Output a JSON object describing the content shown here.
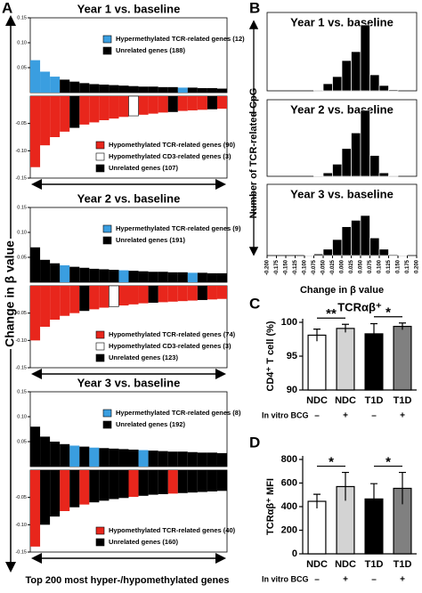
{
  "panels": {
    "A": {
      "label": "A",
      "y_label": "Change in β value",
      "x_label": "Top 200 most hyper-/hypomethylated genes"
    },
    "B": {
      "label": "B",
      "y_label": "Number of TCR-related CpG",
      "x_label": "Change in β value"
    },
    "C": {
      "label": "C"
    },
    "D": {
      "label": "D"
    }
  },
  "chart_data": [
    {
      "type": "bar",
      "title": "Year 1 vs. baseline",
      "ylim": [
        0,
        0.15
      ],
      "yticks": [
        0.05,
        {
          "value": 0.1,
          "label": "0.10"
        },
        {
          "value": 0.15,
          "label": "0.15"
        }
      ],
      "series": [
        {
          "name": "Hypermethylated TCR-related genes (12)",
          "color": "#3a9ee0",
          "values": [
            0.065,
            0.042,
            0.032,
            null,
            null,
            null,
            null,
            null,
            null,
            null,
            null,
            null,
            null,
            null,
            null,
            0.01,
            null,
            null,
            null,
            null
          ]
        },
        {
          "name": "Unrelated genes (188)",
          "color": "#000000",
          "values": [
            null,
            null,
            null,
            0.026,
            0.022,
            0.019,
            0.017,
            0.016,
            0.015,
            0.014,
            0.013,
            0.012,
            0.012,
            0.011,
            0.011,
            null,
            0.01,
            0.009,
            0.009,
            0.008
          ]
        }
      ]
    },
    {
      "type": "bar",
      "ylim": [
        -0.15,
        0
      ],
      "yticks": [
        -0.05,
        {
          "value": -0.1,
          "label": "-0.10"
        },
        -0.15
      ],
      "series": [
        {
          "name": "Hypomethylated TCR-related genes (90)",
          "color": "#e8261c",
          "values": [
            -0.13,
            -0.09,
            -0.075,
            -0.065,
            null,
            -0.052,
            -0.048,
            -0.044,
            -0.041,
            -0.038,
            null,
            -0.034,
            -0.032,
            -0.03,
            null,
            -0.027,
            -0.026,
            -0.025,
            null,
            -0.023
          ]
        },
        {
          "name": "Hypomethylated CD3-related genes (3)",
          "color": "#ffffff",
          "values": [
            null,
            null,
            null,
            null,
            null,
            null,
            null,
            null,
            null,
            null,
            -0.036,
            null,
            null,
            null,
            null,
            null,
            null,
            null,
            null,
            null
          ]
        },
        {
          "name": "Unrelated genes (107)",
          "color": "#000000",
          "values": [
            null,
            null,
            null,
            null,
            -0.058,
            null,
            null,
            null,
            null,
            null,
            null,
            null,
            null,
            null,
            -0.029,
            null,
            null,
            null,
            -0.024,
            null
          ]
        }
      ]
    },
    {
      "type": "bar",
      "title": "Year 2 vs. baseline",
      "ylim": [
        0,
        0.15
      ],
      "yticks": [
        0.05,
        {
          "value": 0.1,
          "label": "0.10"
        },
        {
          "value": 0.15,
          "label": "0.15"
        }
      ],
      "series": [
        {
          "name": "Hypermethylated TCR-related genes (9)",
          "color": "#3a9ee0",
          "values": [
            null,
            null,
            null,
            0.034,
            null,
            null,
            null,
            null,
            null,
            0.024,
            null,
            null,
            null,
            null,
            null,
            null,
            0.019,
            null,
            null,
            null
          ]
        },
        {
          "name": "Unrelated genes (191)",
          "color": "#000000",
          "values": [
            0.07,
            0.045,
            0.038,
            null,
            0.031,
            0.029,
            0.027,
            0.026,
            0.025,
            null,
            0.023,
            0.022,
            0.021,
            0.021,
            0.02,
            0.02,
            null,
            0.019,
            0.018,
            0.018
          ]
        }
      ]
    },
    {
      "type": "bar",
      "ylim": [
        -0.15,
        0
      ],
      "yticks": [
        -0.05,
        {
          "value": -0.1,
          "label": "-0.10"
        },
        -0.15
      ],
      "series": [
        {
          "name": "Hypomethylated TCR-related genes (74)",
          "color": "#e8261c",
          "values": [
            -0.1,
            -0.075,
            -0.062,
            -0.055,
            -0.05,
            null,
            -0.043,
            -0.04,
            null,
            -0.036,
            -0.034,
            -0.032,
            null,
            -0.03,
            -0.029,
            -0.028,
            -0.027,
            null,
            -0.025,
            -0.024
          ]
        },
        {
          "name": "Hypomethylated CD3-related genes (3)",
          "color": "#ffffff",
          "values": [
            null,
            null,
            null,
            null,
            null,
            null,
            null,
            null,
            -0.038,
            null,
            null,
            null,
            null,
            null,
            null,
            null,
            null,
            null,
            null,
            null
          ]
        },
        {
          "name": "Unrelated genes (123)",
          "color": "#000000",
          "values": [
            null,
            null,
            null,
            null,
            null,
            -0.046,
            null,
            null,
            null,
            null,
            null,
            null,
            -0.031,
            null,
            null,
            null,
            null,
            -0.026,
            null,
            null
          ]
        }
      ]
    },
    {
      "type": "bar",
      "title": "Year 3 vs. baseline",
      "ylim": [
        0,
        0.15
      ],
      "yticks": [
        0.05,
        {
          "value": 0.1,
          "label": "0.10"
        },
        {
          "value": 0.15,
          "label": "0.15"
        }
      ],
      "series": [
        {
          "name": "Hypermethylated TCR-related genes (8)",
          "color": "#3a9ee0",
          "values": [
            null,
            null,
            null,
            null,
            0.042,
            null,
            0.038,
            null,
            null,
            null,
            null,
            0.033,
            null,
            null,
            null,
            null,
            null,
            null,
            null,
            null
          ]
        },
        {
          "name": "Unrelated genes (192)",
          "color": "#000000",
          "values": [
            0.08,
            0.06,
            0.05,
            0.045,
            null,
            0.04,
            null,
            0.037,
            0.036,
            0.035,
            0.034,
            null,
            0.032,
            0.031,
            0.03,
            0.03,
            0.029,
            0.028,
            0.028,
            0.027
          ]
        }
      ]
    },
    {
      "type": "bar",
      "ylim": [
        -0.15,
        0
      ],
      "yticks": [
        -0.05,
        {
          "value": -0.1,
          "label": "-0.10"
        },
        -0.15
      ],
      "series": [
        {
          "name": "Hypomethylated TCR-related genes (40)",
          "color": "#e8261c",
          "values": [
            -0.14,
            null,
            null,
            -0.075,
            null,
            -0.063,
            null,
            null,
            null,
            null,
            -0.049,
            null,
            null,
            null,
            -0.043,
            null,
            null,
            null,
            null,
            null
          ]
        },
        {
          "name": "Unrelated genes (160)",
          "color": "#000000",
          "values": [
            null,
            -0.1,
            -0.085,
            null,
            -0.068,
            null,
            -0.059,
            -0.056,
            -0.053,
            -0.051,
            null,
            -0.047,
            -0.045,
            -0.044,
            null,
            -0.042,
            -0.041,
            -0.04,
            -0.039,
            -0.038
          ]
        }
      ]
    },
    {
      "type": "histogram",
      "title": "Year 1 vs. baseline",
      "xlim": [
        -0.2,
        0.2
      ],
      "ylim": [
        0,
        200
      ],
      "bins": [
        -0.2,
        -0.175,
        -0.15,
        -0.125,
        -0.1,
        -0.075,
        -0.05,
        -0.025,
        0,
        0.025,
        0.05,
        0.075,
        0.1,
        0.125,
        0.15,
        0.175,
        0.2
      ],
      "values": [
        0,
        0,
        0,
        0,
        0,
        2,
        20,
        40,
        85,
        110,
        185,
        45,
        15,
        3,
        0,
        0
      ]
    },
    {
      "type": "histogram",
      "title": "Year 2 vs. baseline",
      "xlim": [
        -0.2,
        0.2
      ],
      "ylim": [
        0,
        200
      ],
      "bins": [
        -0.2,
        -0.175,
        -0.15,
        -0.125,
        -0.1,
        -0.075,
        -0.05,
        -0.025,
        0,
        0.025,
        0.05,
        0.075,
        0.1,
        0.125,
        0.15,
        0.175,
        0.2
      ],
      "values": [
        0,
        0,
        0,
        0,
        0,
        1,
        10,
        35,
        80,
        125,
        190,
        60,
        10,
        2,
        0,
        0
      ]
    },
    {
      "type": "histogram",
      "title": "Year 3 vs. baseline",
      "xlim": [
        -0.2,
        0.2
      ],
      "ylim": [
        0,
        200
      ],
      "bins": [
        -0.2,
        -0.175,
        -0.15,
        -0.125,
        -0.1,
        -0.075,
        -0.05,
        -0.025,
        0,
        0.025,
        0.05,
        0.075,
        0.1,
        0.125,
        0.15,
        0.175,
        0.2
      ],
      "values": [
        0,
        0,
        0,
        0,
        1,
        5,
        20,
        50,
        90,
        110,
        125,
        55,
        20,
        3,
        1,
        0
      ],
      "xticks": [
        {
          "value": -0.2,
          "label": "-0.200"
        },
        -0.175,
        {
          "value": -0.15,
          "label": "-0.150"
        },
        -0.125,
        {
          "value": -0.1,
          "label": "-0.100"
        },
        -0.075,
        {
          "value": -0.05,
          "label": "-0.050"
        },
        -0.025,
        {
          "value": 0,
          "label": "0.000"
        },
        0.025,
        {
          "value": 0.05,
          "label": "0.050"
        },
        0.075,
        {
          "value": 0.1,
          "label": "0.100"
        },
        0.125,
        {
          "value": 0.15,
          "label": "0.150"
        },
        0.175,
        {
          "value": 0.2,
          "label": "0.200"
        }
      ]
    },
    {
      "type": "bar",
      "title": "TCRαβ⁺",
      "y_label": "CD4⁺ T cell (%)",
      "ylim": [
        90,
        100
      ],
      "yticks": [
        90,
        95,
        100
      ],
      "categories": [
        "NDC",
        "NDC",
        "T1D",
        "T1D"
      ],
      "values": [
        98.1,
        99.1,
        98.3,
        99.4
      ],
      "errors": [
        0.9,
        0.6,
        1.5,
        0.5
      ],
      "colors": [
        "#ffffff",
        "#d3d3d3",
        "#000000",
        "#808080"
      ],
      "treatment_label": "In vitro BCG",
      "treatment": [
        "–",
        "+",
        "–",
        "+"
      ],
      "annotations": [
        "**",
        "*"
      ]
    },
    {
      "type": "bar",
      "y_label": "TCRαβ⁺ MFI",
      "ylim": [
        0,
        800
      ],
      "yticks": [
        0,
        200,
        400,
        600,
        800
      ],
      "categories": [
        "NDC",
        "NDC",
        "T1D",
        "T1D"
      ],
      "values": [
        445,
        570,
        465,
        555
      ],
      "errors": [
        60,
        120,
        130,
        135
      ],
      "colors": [
        "#ffffff",
        "#d3d3d3",
        "#000000",
        "#808080"
      ],
      "treatment_label": "In vitro BCG",
      "treatment": [
        "–",
        "+",
        "–",
        "+"
      ],
      "annotations": [
        "*",
        "*"
      ]
    }
  ]
}
